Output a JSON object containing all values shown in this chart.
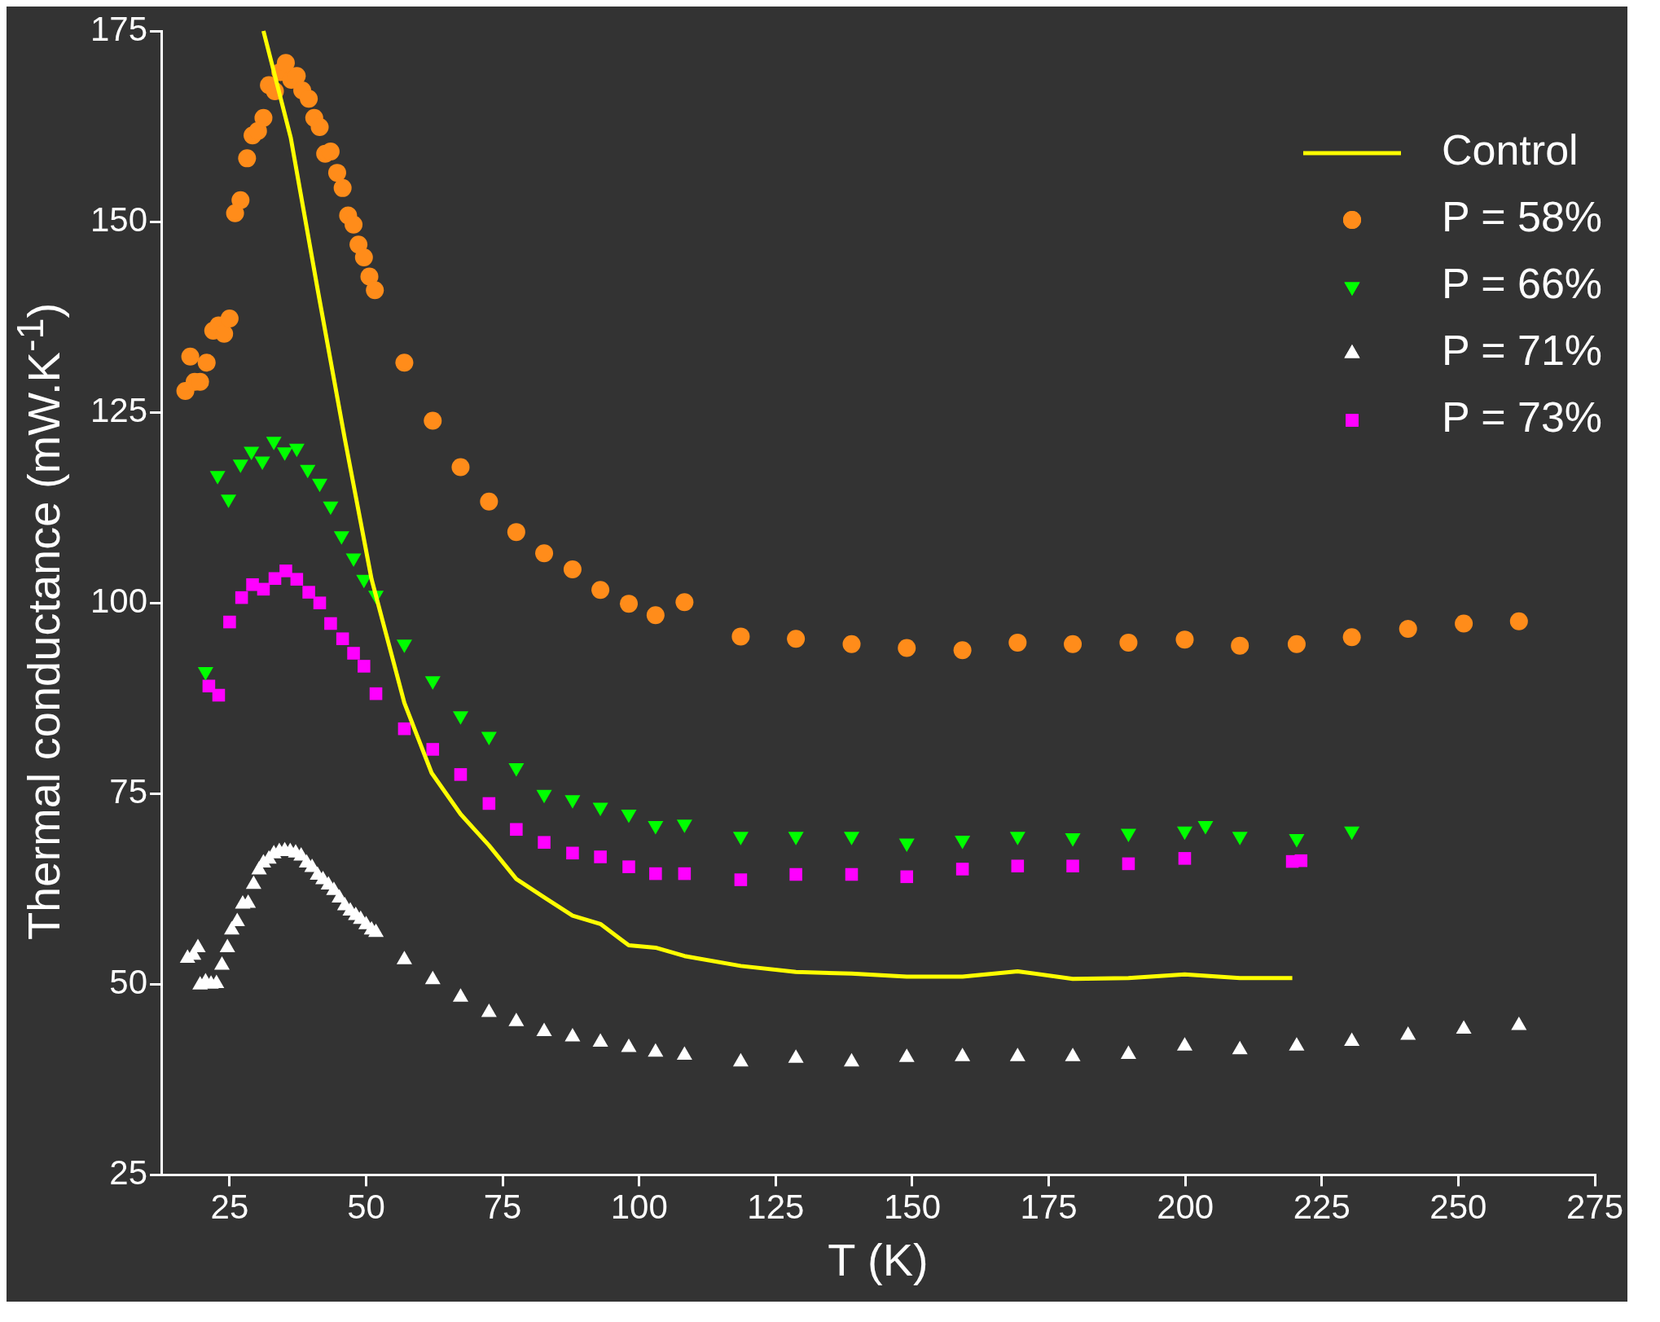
{
  "chart_data": {
    "type": "scatter",
    "xlabel": "T (K)",
    "ylabel": "Thermal conductance (mW.K$^{-1}$)",
    "xlim": [
      12.5,
      275
    ],
    "xticks": [
      25,
      50,
      75,
      100,
      125,
      150,
      175,
      200,
      225,
      250,
      275
    ],
    "ylim": [
      25,
      175
    ],
    "yticks": [
      25,
      50,
      75,
      100,
      125,
      150,
      175
    ],
    "grid": false,
    "legend": "top right",
    "series": [
      {
        "name": "Control",
        "type": "line",
        "marker": "none",
        "line_style": "solid",
        "color": "#ffff00",
        "x": [
          31.2,
          36.2,
          41.1,
          46.1,
          51,
          57,
          62,
          67.3,
          72.5,
          77.5,
          82.6,
          87.8,
          92.9,
          98.1,
          103,
          108.3,
          118.6,
          128.7,
          138.9,
          149,
          159.2,
          169.3,
          179.4,
          189.6,
          199.9,
          210,
          219.6
        ],
        "values": [
          175,
          161,
          141.2,
          121.5,
          103.1,
          86.9,
          77.7,
          72.3,
          68.2,
          63.8,
          61.4,
          59,
          57.9,
          55.1,
          54.8,
          53.7,
          52.4,
          51.6,
          51.4,
          51,
          51,
          51.7,
          50.7,
          50.8,
          51.3,
          50.8,
          50.8
        ]
      },
      {
        "name": "P = 58%",
        "type": "scatter",
        "marker": "circle",
        "color": "#ff8c1a",
        "x": [
          16.9,
          17.8,
          18.6,
          19.6,
          20.8,
          22,
          23,
          24,
          25,
          26,
          27,
          28.2,
          29.2,
          30.2,
          31.2,
          32.2,
          33.3,
          34.3,
          35.3,
          36.3,
          37.3,
          38.3,
          39.5,
          40.5,
          41.5,
          42.5,
          43.5,
          44.7,
          45.7,
          46.7,
          47.7,
          48.6,
          49.6,
          50.6,
          51.6,
          57,
          62.2,
          67.3,
          72.5,
          77.5,
          82.6,
          87.8,
          92.9,
          98.1,
          103,
          108.3,
          118.6,
          128.7,
          138.9,
          149,
          159.2,
          169.3,
          179.4,
          189.6,
          199.9,
          210,
          220.4,
          230.5,
          240.8,
          251,
          261.1
        ],
        "values": [
          127.8,
          132.3,
          129,
          129,
          131.5,
          135.7,
          136.4,
          135.3,
          137.3,
          151.1,
          152.8,
          158.3,
          161.3,
          161.9,
          163.6,
          167.9,
          167.1,
          169.6,
          170.8,
          168.6,
          169.1,
          167.2,
          166.1,
          163.6,
          162.4,
          158.9,
          159.2,
          156.4,
          154.4,
          150.8,
          149.6,
          147,
          145.3,
          142.8,
          141,
          131.5,
          123.9,
          117.8,
          113.3,
          109.3,
          106.5,
          104.4,
          101.7,
          99.9,
          98.4,
          100.1,
          95.6,
          95.3,
          94.6,
          94.1,
          93.8,
          94.8,
          94.6,
          94.8,
          95.2,
          94.4,
          94.6,
          95.5,
          96.6,
          97.3,
          97.6
        ]
      },
      {
        "name": "P = 66%",
        "type": "scatter",
        "marker": "triangle-down",
        "color": "#00ff00",
        "x": [
          20.6,
          22.8,
          24.8,
          27,
          29,
          31,
          33.1,
          35.1,
          37.3,
          39.3,
          41.5,
          43.5,
          45.5,
          47.7,
          49.6,
          51.8,
          57,
          62.2,
          67.3,
          72.5,
          77.5,
          82.6,
          87.8,
          92.9,
          98.1,
          103,
          108.3,
          118.6,
          128.7,
          138.9,
          149,
          159.2,
          169.3,
          179.4,
          189.6,
          199.9,
          203.7,
          210,
          220.4,
          230.5
        ],
        "values": [
          91,
          116.7,
          113.6,
          118.2,
          119.9,
          118.6,
          121.2,
          119.8,
          120.3,
          117.5,
          115.7,
          112.7,
          108.8,
          105.9,
          103.1,
          101,
          94.6,
          89.8,
          85.2,
          82.5,
          78.4,
          74.9,
          74.2,
          73.2,
          72.3,
          70.8,
          71,
          69.4,
          69.4,
          69.4,
          68.5,
          68.9,
          69.4,
          69.2,
          69.8,
          70.1,
          70.8,
          69.4,
          69.1,
          70.1
        ]
      },
      {
        "name": "P = 71%",
        "type": "scatter",
        "marker": "triangle",
        "color": "#ffffff",
        "x": [
          17.3,
          18.4,
          19.2,
          19.6,
          20.6,
          21.6,
          22.6,
          23.6,
          24.6,
          25.4,
          26.4,
          27.4,
          28.4,
          29.4,
          30.4,
          31.2,
          32.2,
          33.1,
          34.1,
          35.1,
          36.1,
          37.1,
          38.1,
          39.1,
          40.1,
          41.1,
          42.1,
          43.1,
          44.1,
          45.1,
          46.1,
          47.1,
          48.1,
          49,
          50,
          51,
          51.8,
          57,
          62.2,
          67.3,
          72.5,
          77.5,
          82.6,
          87.8,
          92.9,
          98.1,
          103,
          108.3,
          118.6,
          128.7,
          138.9,
          149,
          159.2,
          169.3,
          179.4,
          189.6,
          199.9,
          210,
          220.4,
          230.5,
          240.8,
          251,
          261.1
        ],
        "values": [
          53.4,
          53.8,
          54.8,
          49.9,
          50.3,
          50,
          50.1,
          52.5,
          54.8,
          57.1,
          58.2,
          60.5,
          60.6,
          63.1,
          65,
          65.9,
          66.4,
          67.1,
          67.4,
          67.5,
          67.4,
          67.2,
          66.8,
          65.9,
          65.3,
          64.3,
          63.7,
          63,
          62.3,
          61.3,
          60.3,
          59.6,
          59,
          58.5,
          57.8,
          57.1,
          56.8,
          53.2,
          50.6,
          48.3,
          46.3,
          45.1,
          43.8,
          43.1,
          42.4,
          41.7,
          41.1,
          40.7,
          39.8,
          40.3,
          39.8,
          40.4,
          40.5,
          40.5,
          40.5,
          40.8,
          41.9,
          41.4,
          41.9,
          42.5,
          43.3,
          44.1,
          44.6
        ]
      },
      {
        "name": "P = 73%",
        "type": "scatter",
        "marker": "square",
        "color": "#ff00ff",
        "x": [
          21.2,
          23,
          25,
          27.2,
          29.2,
          31.2,
          33.3,
          35.3,
          37.3,
          39.5,
          41.5,
          43.5,
          45.7,
          47.7,
          49.6,
          51.8,
          57,
          62.2,
          67.3,
          72.5,
          77.5,
          82.6,
          87.8,
          92.9,
          98.1,
          103,
          108.3,
          118.6,
          128.7,
          138.9,
          149,
          159.2,
          169.3,
          179.4,
          189.6,
          199.9,
          219.6,
          221.2
        ],
        "values": [
          89.1,
          87.9,
          97.5,
          100.7,
          102.4,
          101.8,
          103.2,
          104.2,
          103.1,
          101.4,
          100,
          97.3,
          95.3,
          93.4,
          91.7,
          88.1,
          83.5,
          80.8,
          77.5,
          73.7,
          70.3,
          68.6,
          67.2,
          66.7,
          65.4,
          64.5,
          64.5,
          63.7,
          64.4,
          64.4,
          64.1,
          65.1,
          65.5,
          65.5,
          65.8,
          66.5,
          66.1,
          66.2
        ]
      }
    ]
  }
}
